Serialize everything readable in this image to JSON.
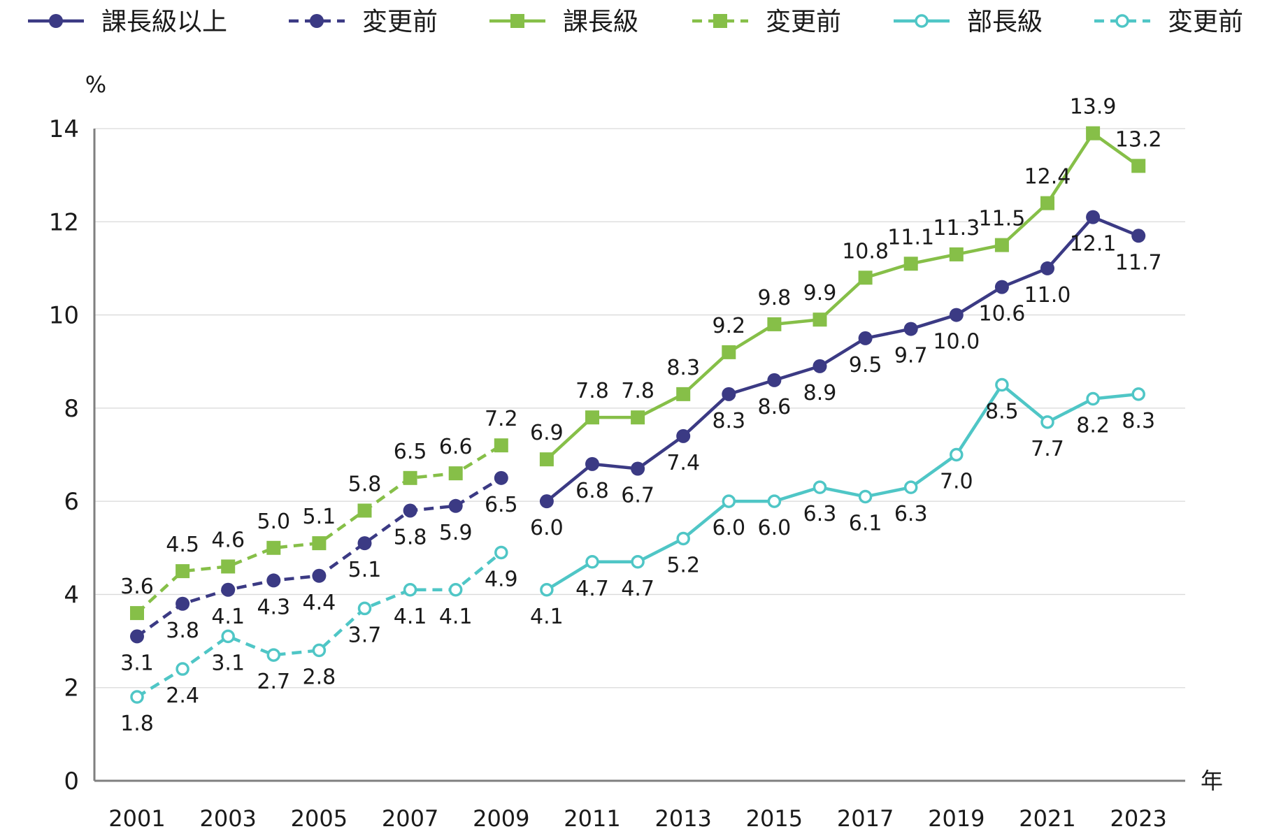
{
  "legend": [
    {
      "label": "課長級以上",
      "color": "#3b3a84",
      "marker": "circle-filled",
      "dash": "solid"
    },
    {
      "label": "変更前",
      "color": "#3b3a84",
      "marker": "circle-filled",
      "dash": "dashed"
    },
    {
      "label": "課長級",
      "color": "#86bf48",
      "marker": "square",
      "dash": "solid"
    },
    {
      "label": "変更前",
      "color": "#86bf48",
      "marker": "square",
      "dash": "dashed"
    },
    {
      "label": "部長級",
      "color": "#4fc6c6",
      "marker": "circle-open",
      "dash": "solid"
    },
    {
      "label": "変更前",
      "color": "#4fc6c6",
      "marker": "circle-open",
      "dash": "dashed"
    }
  ],
  "chart_data": {
    "type": "line",
    "ylabel": "%",
    "xlabel": "年",
    "ylim": [
      0,
      14
    ],
    "yticks": [
      0,
      2,
      4,
      6,
      8,
      10,
      12,
      14
    ],
    "xlim": [
      2001,
      2023
    ],
    "xticks": [
      2001,
      2003,
      2005,
      2007,
      2009,
      2011,
      2013,
      2015,
      2017,
      2019,
      2021,
      2023
    ],
    "grid": true,
    "legend_position": "top",
    "series": [
      {
        "name": "課長級以上",
        "color": "#3b3a84",
        "marker": "circle-filled",
        "dash": "solid",
        "label_side": "below",
        "x": [
          2010,
          2011,
          2012,
          2013,
          2014,
          2015,
          2016,
          2017,
          2018,
          2019,
          2020,
          2021,
          2022,
          2023
        ],
        "y": [
          6.0,
          6.8,
          6.7,
          7.4,
          8.3,
          8.6,
          8.9,
          9.5,
          9.7,
          10.0,
          10.6,
          11.0,
          12.1,
          11.7
        ],
        "labels": [
          "6.0",
          "6.8",
          "6.7",
          "7.4",
          "8.3",
          "8.6",
          "8.9",
          "9.5",
          "9.7",
          "10.0",
          "10.6",
          "11.0",
          "12.1",
          "11.7"
        ]
      },
      {
        "name": "変更前",
        "color": "#3b3a84",
        "marker": "circle-filled",
        "dash": "dashed",
        "label_side": "below",
        "x": [
          2001,
          2002,
          2003,
          2004,
          2005,
          2006,
          2007,
          2008,
          2009
        ],
        "y": [
          3.1,
          3.8,
          4.1,
          4.3,
          4.4,
          5.1,
          5.8,
          5.9,
          6.5
        ],
        "labels": [
          "3.1",
          "3.8",
          "4.1",
          "4.3",
          "4.4",
          "5.1",
          "5.8",
          "5.9",
          "6.5"
        ]
      },
      {
        "name": "課長級",
        "color": "#86bf48",
        "marker": "square",
        "dash": "solid",
        "label_side": "above",
        "x": [
          2010,
          2011,
          2012,
          2013,
          2014,
          2015,
          2016,
          2017,
          2018,
          2019,
          2020,
          2021,
          2022,
          2023
        ],
        "y": [
          6.9,
          7.8,
          7.8,
          8.3,
          9.2,
          9.8,
          9.9,
          10.8,
          11.1,
          11.3,
          11.5,
          12.4,
          13.9,
          13.2
        ],
        "labels": [
          "6.9",
          "7.8",
          "7.8",
          "8.3",
          "9.2",
          "9.8",
          "9.9",
          "10.8",
          "11.1",
          "11.3",
          "11.5",
          "12.4",
          "13.9",
          "13.2"
        ]
      },
      {
        "name": "変更前",
        "color": "#86bf48",
        "marker": "square",
        "dash": "dashed",
        "label_side": "above",
        "x": [
          2001,
          2002,
          2003,
          2004,
          2005,
          2006,
          2007,
          2008,
          2009
        ],
        "y": [
          3.6,
          4.5,
          4.6,
          5.0,
          5.1,
          5.8,
          6.5,
          6.6,
          7.2
        ],
        "labels": [
          "3.6",
          "4.5",
          "4.6",
          "5.0",
          "5.1",
          "5.8",
          "6.5",
          "6.6",
          "7.2"
        ]
      },
      {
        "name": "部長級",
        "color": "#4fc6c6",
        "marker": "circle-open",
        "dash": "solid",
        "label_side": "below",
        "x": [
          2010,
          2011,
          2012,
          2013,
          2014,
          2015,
          2016,
          2017,
          2018,
          2019,
          2020,
          2021,
          2022,
          2023
        ],
        "y": [
          4.1,
          4.7,
          4.7,
          5.2,
          6.0,
          6.0,
          6.3,
          6.1,
          6.3,
          7.0,
          8.5,
          7.7,
          8.2,
          8.3
        ],
        "labels": [
          "4.1",
          "4.7",
          "4.7",
          "5.2",
          "6.0",
          "6.0",
          "6.3",
          "6.1",
          "6.3",
          "7.0",
          "8.5",
          "7.7",
          "8.2",
          "8.3"
        ]
      },
      {
        "name": "変更前",
        "color": "#4fc6c6",
        "marker": "circle-open",
        "dash": "dashed",
        "label_side": "below",
        "x": [
          2001,
          2002,
          2003,
          2004,
          2005,
          2006,
          2007,
          2008,
          2009
        ],
        "y": [
          1.8,
          2.4,
          3.1,
          2.7,
          2.8,
          3.7,
          4.1,
          4.1,
          4.9
        ],
        "labels": [
          "1.8",
          "2.4",
          "3.1",
          "2.7",
          "2.8",
          "3.7",
          "4.1",
          "4.1",
          "4.9"
        ]
      }
    ]
  }
}
